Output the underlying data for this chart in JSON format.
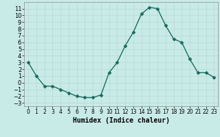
{
  "x": [
    0,
    1,
    2,
    3,
    4,
    5,
    6,
    7,
    8,
    9,
    10,
    11,
    12,
    13,
    14,
    15,
    16,
    17,
    18,
    19,
    20,
    21,
    22,
    23
  ],
  "y": [
    3,
    1,
    -0.5,
    -0.5,
    -1,
    -1.5,
    -2,
    -2.2,
    -2.2,
    -1.8,
    1.5,
    3,
    5.5,
    7.5,
    10.2,
    11.2,
    11,
    8.5,
    6.5,
    6,
    3.5,
    1.5,
    1.5,
    0.8
  ],
  "line_color": "#1a6b5e",
  "marker": "D",
  "marker_size": 2.5,
  "bg_color": "#c8ebe8",
  "grid_color": "#b8d8d4",
  "xlabel": "Humidex (Indice chaleur)",
  "xlabel_fontsize": 7,
  "tick_fontsize_x": 5.5,
  "tick_fontsize_y": 6,
  "xlim": [
    -0.5,
    23.5
  ],
  "ylim": [
    -3.5,
    12.0
  ],
  "yticks": [
    -3,
    -2,
    -1,
    0,
    1,
    2,
    3,
    4,
    5,
    6,
    7,
    8,
    9,
    10,
    11
  ],
  "xticks": [
    0,
    1,
    2,
    3,
    4,
    5,
    6,
    7,
    8,
    9,
    10,
    11,
    12,
    13,
    14,
    15,
    16,
    17,
    18,
    19,
    20,
    21,
    22,
    23
  ],
  "spine_color": "#888888",
  "linewidth": 1.0
}
